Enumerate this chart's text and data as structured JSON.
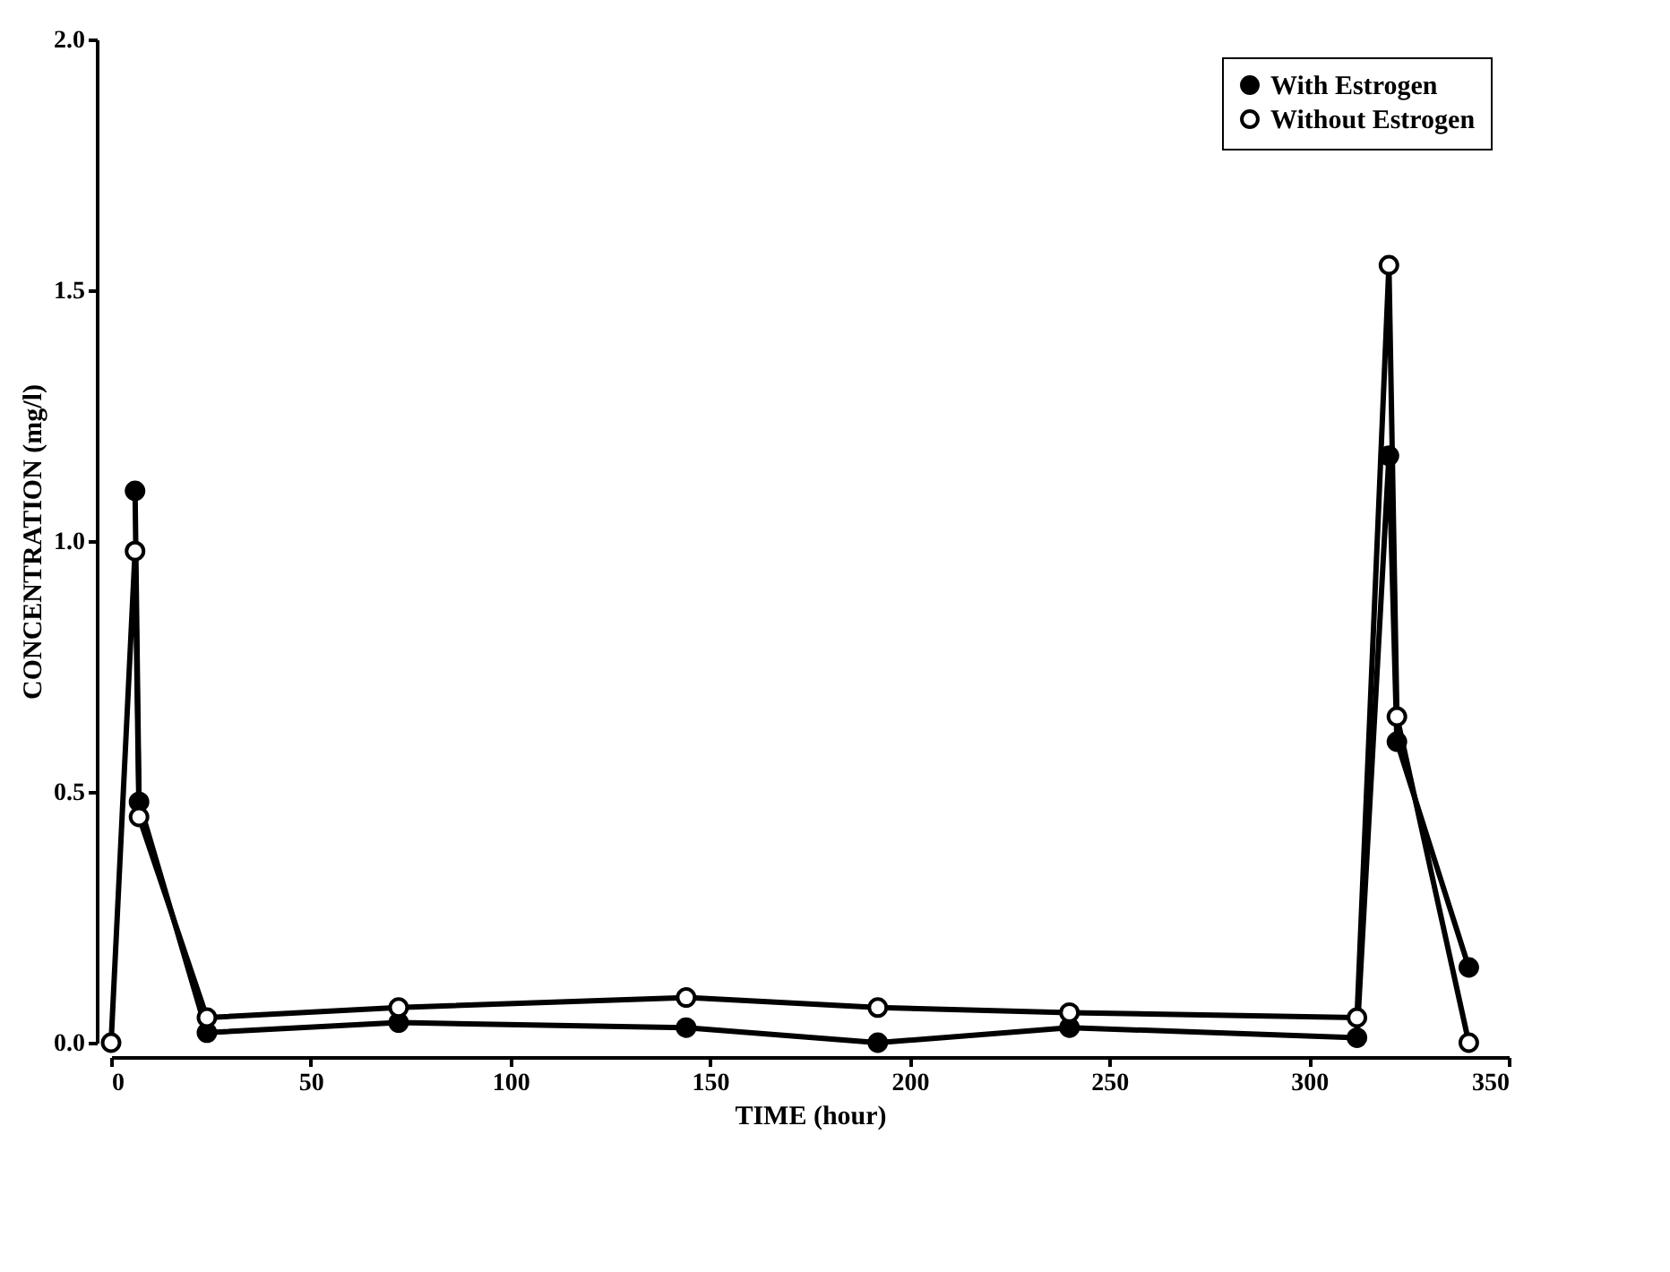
{
  "chart_data": {
    "type": "line",
    "xlabel": "TIME (hour)",
    "ylabel": "CONCENTRATION (mg/l)",
    "xlim": [
      0,
      350
    ],
    "xticks": [
      0,
      50,
      100,
      150,
      200,
      250,
      300,
      350
    ],
    "ylim": [
      0,
      2
    ],
    "yticks": [
      {
        "value": 0,
        "label": "0.0"
      },
      {
        "value": 0.5,
        "label": "0.5"
      },
      {
        "value": 1,
        "label": "1.0"
      },
      {
        "value": 1.5,
        "label": "1.5"
      },
      {
        "value": 2,
        "label": "2.0"
      }
    ],
    "grid": false,
    "legend": "top right",
    "marker": "circle",
    "line_style": "solid",
    "series": [
      {
        "name": "With Estrogen",
        "color": "#000000",
        "x": [
          6,
          7,
          24,
          72,
          144,
          192,
          240,
          312,
          320,
          322,
          340
        ],
        "values": [
          1.1,
          0.48,
          0.02,
          0.04,
          0.03,
          0.0,
          0.03,
          0.01,
          1.17,
          0.6,
          0.15
        ]
      },
      {
        "name": "Without Estrogen",
        "color": "#000000",
        "x": [
          0,
          6,
          7,
          24,
          72,
          144,
          192,
          240,
          312,
          320,
          322,
          340
        ],
        "values": [
          0,
          0.98,
          0.45,
          0.05,
          0.07,
          0.09,
          0.07,
          0.06,
          0.05,
          1.55,
          0.65,
          0.0
        ]
      }
    ]
  }
}
